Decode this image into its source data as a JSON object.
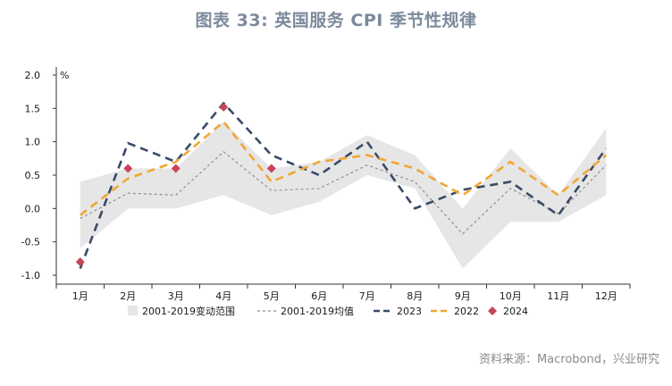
{
  "page": {
    "title": "图表 33: 英国服务 CPI 季节性规律",
    "source": "资料来源：Macrobond，兴业研究"
  },
  "chart_data": {
    "type": "line",
    "unit": "%",
    "categories": [
      "1月",
      "2月",
      "3月",
      "4月",
      "5月",
      "6月",
      "7月",
      "8月",
      "9月",
      "10月",
      "11月",
      "12月"
    ],
    "ylim": [
      -1.0,
      2.0
    ],
    "yticks": [
      "2.0",
      "1.5",
      "1.0",
      "0.5",
      "0.0",
      "-0.5",
      "-1.0"
    ],
    "ytick_values": [
      2.0,
      1.5,
      1.0,
      0.5,
      0.0,
      -0.5,
      -1.0
    ],
    "grid": false,
    "legend_position": "bottom",
    "band": {
      "name": "2001-2019变动范围",
      "color": "#e6e6e6",
      "low": [
        -0.6,
        0.0,
        0.0,
        0.2,
        -0.1,
        0.1,
        0.5,
        0.3,
        -0.9,
        -0.2,
        -0.2,
        0.2
      ],
      "high": [
        0.4,
        0.6,
        0.6,
        1.3,
        0.6,
        0.7,
        1.1,
        0.8,
        0.0,
        0.9,
        0.2,
        1.2
      ]
    },
    "series": [
      {
        "name": "2001-2019均值",
        "style": "dotted",
        "color": "#909090",
        "values": [
          -0.15,
          0.23,
          0.2,
          0.85,
          0.27,
          0.3,
          0.65,
          0.4,
          -0.38,
          0.3,
          -0.08,
          0.65
        ]
      },
      {
        "name": "2023",
        "style": "dashed",
        "color": "#3a4a66",
        "values": [
          -0.9,
          0.98,
          0.7,
          1.58,
          0.8,
          0.5,
          1.0,
          0.0,
          0.28,
          0.4,
          -0.1,
          0.9
        ]
      },
      {
        "name": "2022",
        "style": "dashed",
        "color": "#f2a634",
        "values": [
          -0.1,
          0.45,
          0.7,
          1.3,
          0.4,
          0.7,
          0.8,
          0.6,
          0.2,
          0.7,
          0.2,
          0.8
        ]
      },
      {
        "name": "2024",
        "style": "marker",
        "color": "#c8445a",
        "values": [
          -0.8,
          0.6,
          0.6,
          1.52,
          0.6,
          null,
          null,
          null,
          null,
          null,
          null,
          null
        ]
      }
    ]
  }
}
